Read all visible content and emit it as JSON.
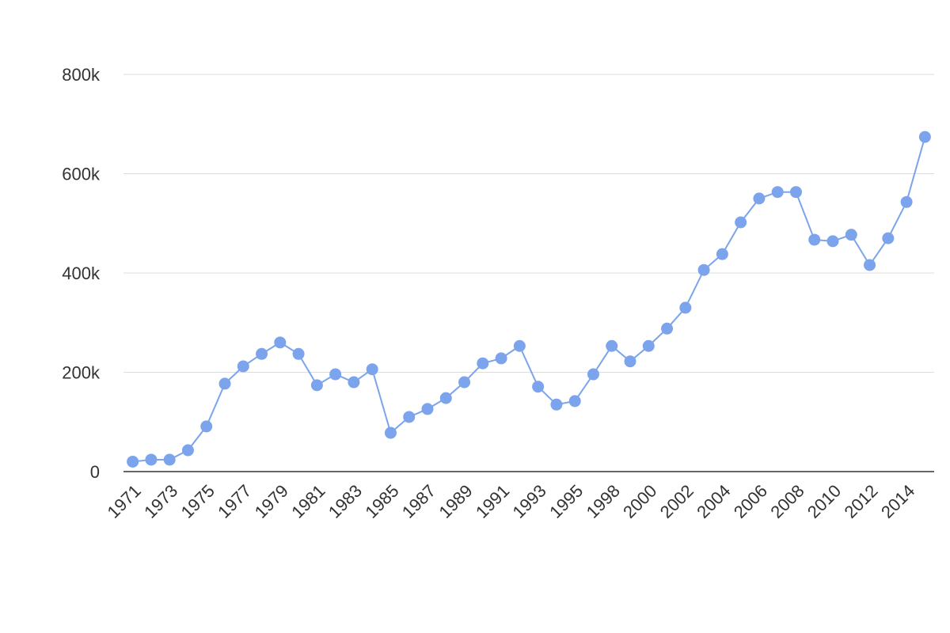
{
  "chart_data": {
    "type": "line",
    "categories": [
      "1971",
      null,
      "1973",
      null,
      "1975",
      null,
      "1977",
      null,
      "1979",
      null,
      "1981",
      null,
      "1983",
      null,
      "1985",
      null,
      "1987",
      null,
      "1989",
      null,
      "1991",
      null,
      "1993",
      null,
      "1995",
      null,
      "1998",
      null,
      "2000",
      null,
      "2002",
      null,
      "2004",
      null,
      "2006",
      null,
      "2008",
      null,
      "2010",
      null,
      "2012",
      null,
      "2014",
      null
    ],
    "series": [
      {
        "color": "#7ba4ec",
        "values": [
          20000,
          24000,
          24000,
          43000,
          91000,
          177000,
          212000,
          237000,
          260000,
          237000,
          174000,
          196000,
          180000,
          206000,
          78000,
          110000,
          126000,
          148000,
          180000,
          218000,
          228000,
          253000,
          171000,
          135000,
          142000,
          196000,
          253000,
          222000,
          253000,
          288000,
          330000,
          406000,
          438000,
          502000,
          550000,
          563000,
          563000,
          467000,
          464000,
          477000,
          416000,
          470000,
          543000,
          674000
        ]
      }
    ],
    "ylim": [
      0,
      800000
    ],
    "yticks": [
      0,
      {
        "value": 200000,
        "label": "200k"
      },
      {
        "value": 400000,
        "label": "400k"
      },
      {
        "value": 600000,
        "label": "600k"
      },
      {
        "value": 800000,
        "label": "800k"
      }
    ],
    "grid": true
  }
}
